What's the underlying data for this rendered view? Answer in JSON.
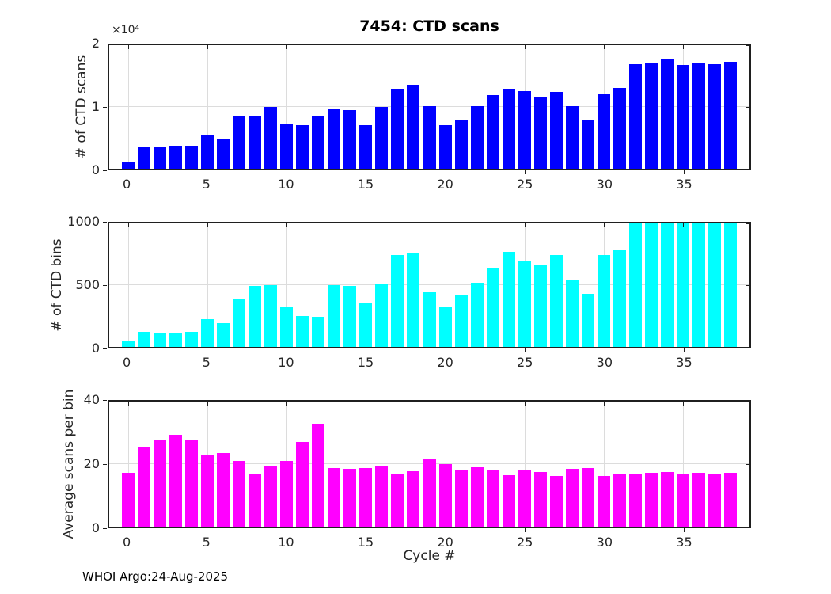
{
  "figure": {
    "title": "7454: CTD scans",
    "xlabel": "Cycle #",
    "footer": "WHOI Argo:24-Aug-2025"
  },
  "colors": {
    "scans_bar": "#0000FF",
    "bins_bar": "#00FFFF",
    "avg_bar": "#FF00FF",
    "axis": "#1F1F1F",
    "grid": "#DCDCDC"
  },
  "chart_data": [
    {
      "type": "bar",
      "name": "ctd-scans",
      "ylabel": "# of CTD scans",
      "exponent": "×10⁴",
      "bar_color": "#0000FF",
      "grid": true,
      "xlim": [
        -1.2,
        39.2
      ],
      "ylim": [
        0,
        20000
      ],
      "xticks": [
        0,
        5,
        10,
        15,
        20,
        25,
        30,
        35
      ],
      "yticks": [
        {
          "v": 0,
          "label": "0"
        },
        {
          "v": 10000,
          "label": "1"
        },
        {
          "v": 20000,
          "label": "2"
        }
      ],
      "x": [
        0,
        1,
        2,
        3,
        4,
        5,
        6,
        7,
        8,
        9,
        10,
        11,
        12,
        13,
        14,
        15,
        16,
        17,
        18,
        19,
        20,
        21,
        22,
        23,
        24,
        25,
        26,
        27,
        28,
        29,
        30,
        31,
        32,
        33,
        34,
        35,
        36,
        37,
        38
      ],
      "values": [
        1000,
        3450,
        3400,
        3750,
        3700,
        5500,
        4900,
        8650,
        8650,
        10000,
        7300,
        7100,
        8600,
        9700,
        9500,
        7000,
        10000,
        12800,
        13600,
        10100,
        7000,
        7800,
        10100,
        11900,
        12800,
        12600,
        11500,
        12400,
        10100,
        8000,
        12100,
        13100,
        16900,
        17100,
        17800,
        16800,
        17200,
        16900,
        17300
      ]
    },
    {
      "type": "bar",
      "name": "ctd-bins",
      "ylabel": "# of CTD bins",
      "exponent": "",
      "bar_color": "#00FFFF",
      "grid": true,
      "xlim": [
        -1.2,
        39.2
      ],
      "ylim": [
        0,
        1000
      ],
      "xticks": [
        0,
        5,
        10,
        15,
        20,
        25,
        30,
        35
      ],
      "yticks": [
        {
          "v": 0,
          "label": "0"
        },
        {
          "v": 500,
          "label": "500"
        },
        {
          "v": 1000,
          "label": "1000"
        }
      ],
      "x": [
        0,
        1,
        2,
        3,
        4,
        5,
        6,
        7,
        8,
        9,
        10,
        11,
        12,
        13,
        14,
        15,
        16,
        17,
        18,
        19,
        20,
        21,
        22,
        23,
        24,
        25,
        26,
        27,
        28,
        29,
        30,
        31,
        32,
        33,
        34,
        35,
        36,
        37,
        38
      ],
      "values": [
        52,
        120,
        115,
        115,
        120,
        225,
        195,
        390,
        495,
        500,
        330,
        250,
        242,
        500,
        495,
        355,
        510,
        745,
        755,
        440,
        330,
        422,
        517,
        640,
        770,
        700,
        660,
        745,
        545,
        427,
        745,
        780,
        1000,
        1000,
        1000,
        1000,
        1000,
        1000,
        1000
      ]
    },
    {
      "type": "bar",
      "name": "avg-scans-per-bin",
      "ylabel": "Average scans per bin",
      "exponent": "",
      "bar_color": "#FF00FF",
      "grid": true,
      "xlim": [
        -1.2,
        39.2
      ],
      "ylim": [
        0,
        40
      ],
      "xticks": [
        0,
        5,
        10,
        15,
        20,
        25,
        30,
        35
      ],
      "yticks": [
        {
          "v": 0,
          "label": "0"
        },
        {
          "v": 20,
          "label": "20"
        },
        {
          "v": 40,
          "label": "40"
        }
      ],
      "x": [
        0,
        1,
        2,
        3,
        4,
        5,
        6,
        7,
        8,
        9,
        10,
        11,
        12,
        13,
        14,
        15,
        16,
        17,
        18,
        19,
        20,
        21,
        22,
        23,
        24,
        25,
        26,
        27,
        28,
        29,
        30,
        31,
        32,
        33,
        34,
        35,
        36,
        37,
        38
      ],
      "values": [
        17.1,
        25.4,
        27.9,
        29.3,
        27.5,
        23.0,
        23.5,
        21.1,
        17.0,
        19.2,
        21.1,
        27.2,
        32.9,
        18.8,
        18.5,
        18.8,
        19.2,
        16.7,
        17.6,
        21.8,
        20.0,
        17.9,
        19.0,
        18.3,
        16.5,
        17.9,
        17.5,
        16.3,
        18.4,
        18.8,
        16.2,
        16.9,
        16.9,
        17.2,
        17.5,
        16.8,
        17.3,
        16.7,
        17.1
      ]
    }
  ]
}
